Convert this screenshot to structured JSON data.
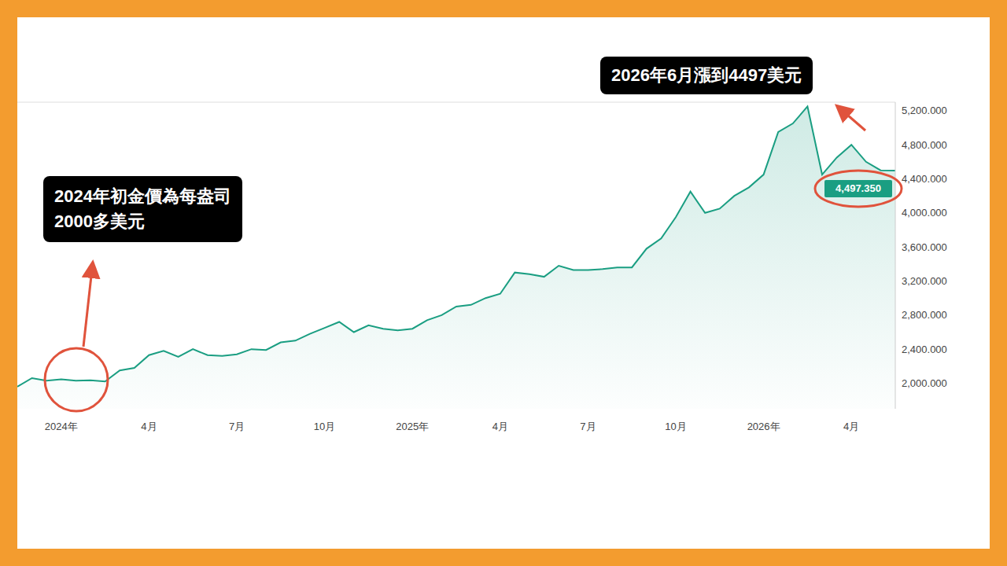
{
  "chart_data": {
    "type": "area",
    "color": "#1a9e82",
    "grid": false,
    "legend": null,
    "categories": [
      null,
      null,
      null,
      "2024年",
      null,
      null,
      null,
      null,
      null,
      "4月",
      null,
      null,
      null,
      null,
      null,
      "7月",
      null,
      null,
      null,
      null,
      null,
      "10月",
      null,
      null,
      null,
      null,
      null,
      "2025年",
      null,
      null,
      null,
      null,
      null,
      "4月",
      null,
      null,
      null,
      null,
      null,
      "7月",
      null,
      null,
      null,
      null,
      null,
      "10月",
      null,
      null,
      null,
      null,
      null,
      "2026年",
      null,
      null,
      null,
      null,
      null,
      "4月",
      null,
      null,
      null
    ],
    "values": [
      1960,
      2060,
      2030,
      2045,
      2030,
      2035,
      2020,
      2150,
      2180,
      2330,
      2380,
      2310,
      2400,
      2330,
      2320,
      2340,
      2400,
      2390,
      2480,
      2500,
      2580,
      2650,
      2720,
      2600,
      2680,
      2640,
      2620,
      2640,
      2740,
      2800,
      2900,
      2920,
      3000,
      3050,
      3300,
      3280,
      3250,
      3380,
      3330,
      3330,
      3340,
      3360,
      3360,
      3580,
      3700,
      3950,
      4250,
      4000,
      4050,
      4200,
      4300,
      4450,
      4950,
      5050,
      5250,
      4450,
      4650,
      4800,
      4600,
      4500,
      4497.35
    ],
    "ylim": [
      1700,
      5300
    ],
    "yticks": [
      {
        "value": 2000,
        "label": "2,000.000"
      },
      {
        "value": 2400,
        "label": "2,400.000"
      },
      {
        "value": 2800,
        "label": "2,800.000"
      },
      {
        "value": 3200,
        "label": "3,200.000"
      },
      {
        "value": 3600,
        "label": "3,600.000"
      },
      {
        "value": 4000,
        "label": "4,000.000"
      },
      {
        "value": 4400,
        "label": "4,400.000"
      },
      {
        "value": 4800,
        "label": "4,800.000"
      },
      {
        "value": 5200,
        "label": "5,200.000"
      }
    ],
    "current_price": {
      "value": 4497.35,
      "label": "4,497.350"
    },
    "annotations": [
      {
        "lines": [
          "2024年初金價為每盎司",
          "2000多美元"
        ]
      },
      {
        "lines": [
          "2026年6月漲到4497美元"
        ]
      }
    ]
  }
}
